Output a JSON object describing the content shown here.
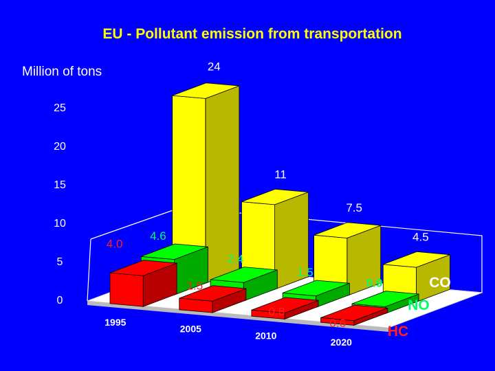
{
  "chart_data": {
    "type": "bar",
    "title": "EU - Pollutant emission from transportation",
    "ylabel": "Million of tons",
    "ylim": [
      0,
      25
    ],
    "yticks": [
      0,
      5,
      10,
      15,
      20,
      25
    ],
    "categories": [
      "1995",
      "2005",
      "2010",
      "2020"
    ],
    "series": [
      {
        "name": "CO",
        "values": [
          24,
          11,
          7.5,
          4.5
        ],
        "labels": [
          "24",
          "11",
          "7.5",
          "4.5"
        ],
        "color": "#ffff00",
        "label_color": "#ffffff"
      },
      {
        "name": "NO",
        "values": [
          4.6,
          2.4,
          1.5,
          0.9
        ],
        "labels": [
          "4.6",
          "2.4",
          "1.5",
          "0.9"
        ],
        "color": "#00ee00",
        "label_color": "#00ff66"
      },
      {
        "name": "HC",
        "values": [
          4.0,
          1.5,
          0.8,
          0.6
        ],
        "labels": [
          "4.0",
          "1.5",
          "0.8",
          "0.6"
        ],
        "color": "#ff0000",
        "label_color": "#ff2020"
      }
    ],
    "legend_placement": "right",
    "grid": false
  }
}
